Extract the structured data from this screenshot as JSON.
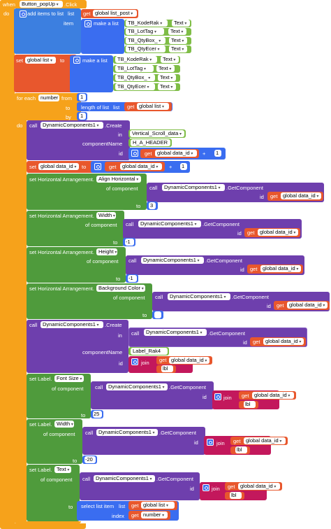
{
  "event": {
    "when": "when",
    "component": "Button_popUp",
    "event_name": ".Click",
    "do": "do"
  },
  "add_items": {
    "label": "add items to list",
    "list": "list",
    "item": "item",
    "get": "get",
    "var": "global list_post",
    "make_list": "make a list",
    "rows": [
      {
        "name": "TB_KodeRak",
        "prop": "Text"
      },
      {
        "name": "TB_LotTag",
        "prop": "Text"
      },
      {
        "name": "TB_QtyBox_",
        "prop": "Text"
      },
      {
        "name": "TB_QtyEcer",
        "prop": "Text"
      }
    ]
  },
  "set_global_list": {
    "set": "set",
    "var": "global list",
    "to": "to",
    "make_list": "make a list",
    "rows": [
      {
        "name": "TB_KodeRak",
        "prop": "Text"
      },
      {
        "name": "TB_LotTag",
        "prop": "Text"
      },
      {
        "name": "TB_QtyBox_",
        "prop": "Text"
      },
      {
        "name": "TB_QtyEcer",
        "prop": "Text"
      }
    ]
  },
  "for_each": {
    "label": "for each",
    "var": "number",
    "from": "from",
    "from_val": "1",
    "to": "to",
    "length": "length of list",
    "list": "list",
    "get": "get",
    "to_var": "global list",
    "by": "by",
    "by_val": "1",
    "do": "do"
  },
  "create1": {
    "call": "call",
    "component": "DynamicComponents1",
    "method": ".Create",
    "in": "in",
    "in_val": "Vertical_Scroll_data",
    "compname": "componentName",
    "compname_val": "H_A_HEADER",
    "id": "id",
    "get": "get",
    "var": "global data_id",
    "plus": "+",
    "one": "1"
  },
  "set_data_id": {
    "set": "set",
    "var": "global data_id",
    "to": "to",
    "get": "get",
    "get_var": "global data_id",
    "plus": "+",
    "one": "1"
  },
  "props": [
    {
      "prefix": "set Horizontal Arrangement.",
      "prop": "Align Horizontal",
      "of": "of component",
      "value": "3"
    },
    {
      "prefix": "set Horizontal Arrangement.",
      "prop": "Width",
      "of": "of component",
      "value": "-1"
    },
    {
      "prefix": "set Horizontal Arrangement.",
      "prop": "Height",
      "of": "of component",
      "value": "-1"
    },
    {
      "prefix": "set Horizontal Arrangement.",
      "prop": "Background Color",
      "of": "of component",
      "value": ""
    }
  ],
  "common": {
    "call": "call",
    "component": "DynamicComponents1",
    "getcomp": ".GetComponent",
    "id": "id",
    "get": "get",
    "var": "global data_id",
    "to": "to"
  },
  "create2": {
    "call": "call",
    "component": "DynamicComponents1",
    "method": ".Create",
    "in": "in",
    "compname": "componentName",
    "compname_val": "Label_Rak4",
    "id": "id",
    "join": "join",
    "get": "get",
    "var": "global data_id",
    "lbl": "lbl"
  },
  "labels": [
    {
      "prefix": "set Label.",
      "prop": "Font Size",
      "of": "of component",
      "value": "25",
      "join": "join",
      "lbl": "lbl"
    },
    {
      "prefix": "set Label.",
      "prop": "Width",
      "of": "of component",
      "value": "-20",
      "join": "join",
      "lbl": "lbl"
    },
    {
      "prefix": "set Label.",
      "prop": "Text",
      "of": "of component",
      "join": "join",
      "lbl": "lbl"
    }
  ],
  "select": {
    "label": "select list item",
    "list": "list",
    "index": "index",
    "get": "get",
    "list_var": "global list",
    "index_var": "number"
  }
}
